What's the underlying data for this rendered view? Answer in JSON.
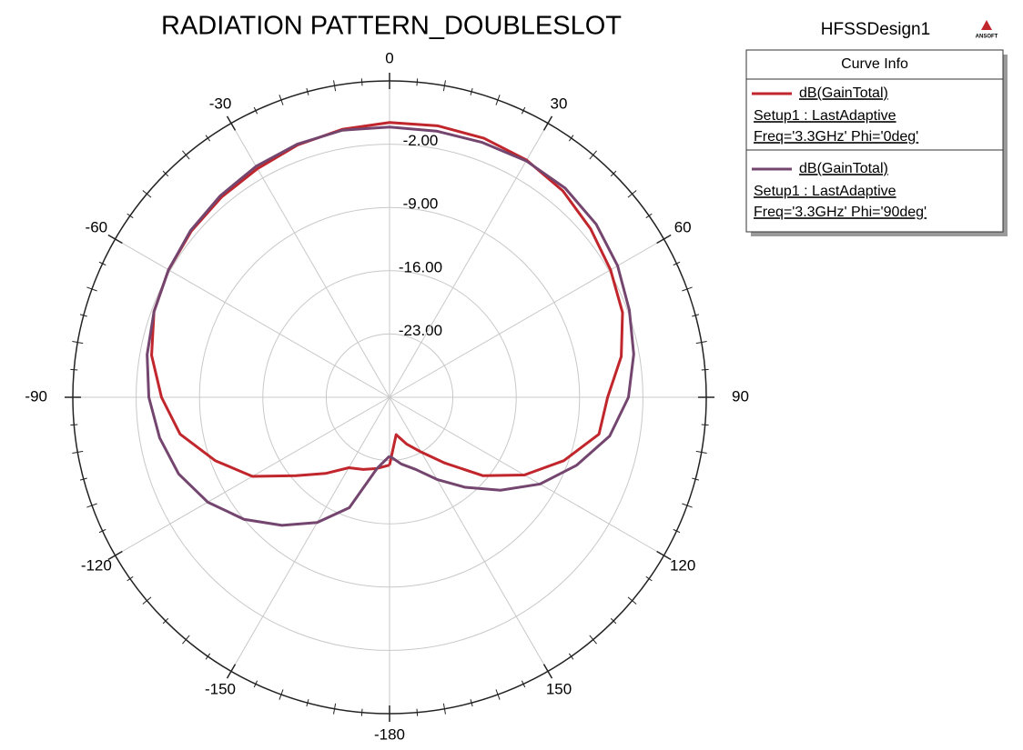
{
  "chart_data": {
    "type": "polar",
    "title": "RADIATION PATTERN_DOUBLESLOT",
    "design": "HFSSDesign1",
    "logo": "ANSOFT",
    "legend_title": "Curve Info",
    "x": [
      -180,
      -170,
      -160,
      -150,
      -140,
      -130,
      -120,
      -110,
      -100,
      -90,
      -80,
      -70,
      -60,
      -50,
      -40,
      -30,
      -20,
      -10,
      0,
      10,
      20,
      30,
      40,
      50,
      60,
      70,
      80,
      90,
      100,
      110,
      120,
      130,
      140,
      150,
      160,
      170,
      180
    ],
    "series": [
      {
        "name": "dB(GainTotal)",
        "info": [
          "Setup1 : LastAdaptive",
          "Freq='3.3GHz' Phi='0deg'"
        ],
        "color": "#c0262c",
        "values": [
          -22.5,
          -22,
          -21.5,
          -21,
          -19,
          -16.5,
          -12.5,
          -9.5,
          -6.5,
          -4.8,
          -3.3,
          -2.3,
          -1.8,
          -1.4,
          -1.1,
          -0.8,
          -0.3,
          0.1,
          0.4,
          0.5,
          0.5,
          0.3,
          -0.2,
          -1,
          -1.8,
          -2.6,
          -4,
          -5.9,
          -6.5,
          -9.5,
          -12.8,
          -16.5,
          -20.5,
          -23,
          -24.5,
          -25.8,
          -22.5
        ]
      },
      {
        "name": "dB(GainTotal)",
        "info": [
          "Setup1 : LastAdaptive",
          "Freq='3.3GHz' Phi='90deg'"
        ],
        "color": "#74466f",
        "values": [
          -23.5,
          -22,
          -17,
          -14,
          -11.5,
          -9,
          -6.8,
          -5.2,
          -4.2,
          -3.4,
          -2.8,
          -2.3,
          -1.8,
          -1.3,
          -0.9,
          -0.5,
          -0.2,
          0,
          -0.1,
          -0.1,
          0,
          0.2,
          0.2,
          -0.2,
          -0.9,
          -1.8,
          -2.6,
          -3.6,
          -5.3,
          -8,
          -10.8,
          -14,
          -17,
          -19.5,
          -21.5,
          -22.5,
          -23.5
        ]
      }
    ],
    "angle_ticks": [
      -180,
      -150,
      -120,
      -90,
      -60,
      -30,
      0,
      30,
      60,
      90,
      120,
      150
    ],
    "rlim": [
      -30,
      5
    ],
    "rticks": [
      {
        "value": -23,
        "label": "-23.00"
      },
      {
        "value": -16,
        "label": "-16.00"
      },
      {
        "value": -9,
        "label": "-9.00"
      },
      {
        "value": -2,
        "label": "-2.00"
      }
    ],
    "grid": true
  }
}
